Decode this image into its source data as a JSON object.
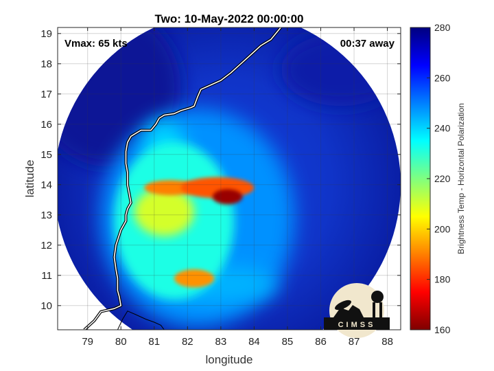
{
  "chart_data": {
    "type": "heatmap",
    "title": "Two: 10-May-2022 00:00:00",
    "xlabel": "longitude",
    "ylabel": "latitude",
    "xlim": [
      78.1,
      88.4
    ],
    "ylim": [
      9.2,
      19.2
    ],
    "xticks": [
      79,
      80,
      81,
      82,
      83,
      84,
      85,
      86,
      87,
      88
    ],
    "yticks": [
      10,
      11,
      12,
      13,
      14,
      15,
      16,
      17,
      18,
      19
    ],
    "grid": true,
    "annotations": {
      "left": "Vmax: 65 kts",
      "right": "00:37 away"
    },
    "colorbar": {
      "label": "Brightness Temp - Horizontal Polarization",
      "range": [
        160,
        280
      ],
      "ticks": [
        160,
        180,
        200,
        220,
        240,
        260,
        280
      ],
      "colormap": "jet"
    },
    "swath": {
      "center": [
        83.2,
        14.0
      ],
      "radius_deg": 5.2
    },
    "features": [
      {
        "name": "core",
        "lon": 83.2,
        "lat": 13.6,
        "value": 163,
        "rx": 0.45,
        "ry": 0.25
      },
      {
        "name": "eastern band",
        "lon": 82.9,
        "lat": 13.9,
        "value": 185,
        "rx": 1.1,
        "ry": 0.35
      },
      {
        "name": "western band",
        "lon": 81.5,
        "lat": 13.9,
        "value": 190,
        "rx": 0.8,
        "ry": 0.25
      },
      {
        "name": "southern cell",
        "lon": 82.2,
        "lat": 10.9,
        "value": 192,
        "rx": 0.6,
        "ry": 0.3
      },
      {
        "name": "west yellow region",
        "lon": 81.3,
        "lat": 13.1,
        "value": 210,
        "rx": 0.9,
        "ry": 0.8
      },
      {
        "name": "cyan region",
        "lon": 81.6,
        "lat": 12.8,
        "value": 232,
        "rx": 1.8,
        "ry": 2.6
      },
      {
        "name": "outer rain region",
        "lon": 82.3,
        "lat": 12.9,
        "value": 248,
        "rx": 2.9,
        "ry": 3.6
      },
      {
        "name": "north feeder",
        "lon": 81.3,
        "lat": 15.3,
        "value": 240,
        "rx": 0.6,
        "ry": 0.8
      },
      {
        "name": "south feeder",
        "lon": 82.9,
        "lat": 10.7,
        "value": 244,
        "rx": 1.8,
        "ry": 0.6
      }
    ],
    "coastline": [
      [
        84.8,
        19.2
      ],
      [
        84.5,
        18.8
      ],
      [
        84.2,
        18.6
      ],
      [
        83.9,
        18.3
      ],
      [
        83.6,
        18.0
      ],
      [
        83.3,
        17.7
      ],
      [
        83.0,
        17.45
      ],
      [
        82.7,
        17.3
      ],
      [
        82.4,
        17.15
      ],
      [
        82.3,
        16.9
      ],
      [
        82.2,
        16.6
      ],
      [
        82.1,
        16.55
      ],
      [
        81.8,
        16.45
      ],
      [
        81.6,
        16.35
      ],
      [
        81.3,
        16.3
      ],
      [
        81.15,
        16.2
      ],
      [
        81.05,
        16.0
      ],
      [
        80.9,
        15.8
      ],
      [
        80.6,
        15.8
      ],
      [
        80.3,
        15.6
      ],
      [
        80.2,
        15.4
      ],
      [
        80.15,
        15.1
      ],
      [
        80.15,
        14.7
      ],
      [
        80.2,
        14.4
      ],
      [
        80.2,
        14.0
      ],
      [
        80.25,
        13.7
      ],
      [
        80.3,
        13.4
      ],
      [
        80.2,
        13.2
      ],
      [
        80.15,
        13.0
      ],
      [
        80.15,
        12.8
      ],
      [
        80.0,
        12.5
      ],
      [
        79.85,
        12.0
      ],
      [
        79.8,
        11.6
      ],
      [
        79.85,
        11.2
      ],
      [
        79.9,
        10.9
      ],
      [
        79.9,
        10.5
      ],
      [
        79.95,
        10.3
      ],
      [
        80.0,
        10.0
      ],
      [
        79.8,
        9.9
      ],
      [
        79.4,
        9.8
      ],
      [
        79.2,
        9.5
      ],
      [
        79.0,
        9.3
      ],
      [
        78.9,
        9.2
      ]
    ],
    "sri_lanka": [
      [
        79.9,
        9.2
      ],
      [
        80.05,
        9.55
      ],
      [
        80.2,
        9.82
      ],
      [
        80.45,
        9.7
      ],
      [
        80.75,
        9.55
      ],
      [
        81.0,
        9.45
      ],
      [
        81.2,
        9.35
      ],
      [
        81.3,
        9.2
      ]
    ]
  },
  "logo": {
    "text": "CIMSS"
  }
}
